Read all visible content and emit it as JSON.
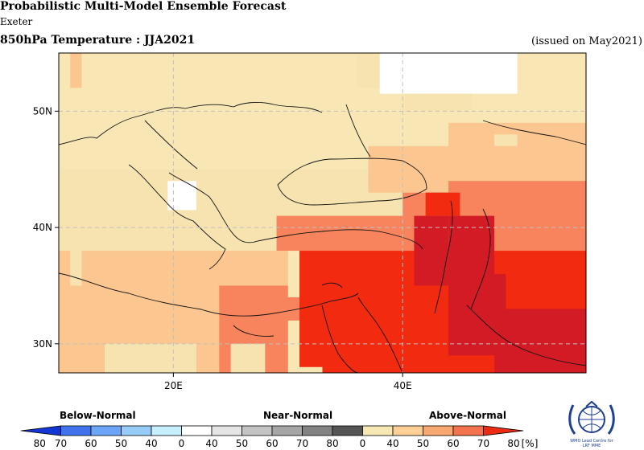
{
  "header": {
    "title": "Probabilistic Multi-Model Ensemble Forecast",
    "subtitle": "Exeter",
    "variable_title": "850hPa Temperature : JJA2021",
    "issued": "(issued on May2021)"
  },
  "map": {
    "lon_range": [
      10,
      56
    ],
    "lat_range": [
      27.5,
      55
    ],
    "grid_lon": [
      20,
      40
    ],
    "grid_lat": [
      30,
      40,
      50
    ],
    "lat_labels": [
      "30N",
      "40N",
      "50N"
    ],
    "lon_labels": [
      "20E",
      "40E"
    ],
    "colors": {
      "land_bg": "#f8e7b5",
      "near_normal": "#ffffff",
      "above_40": "#f6e3b0",
      "above_50": "#fbc68f",
      "above_60": "#f7845c",
      "above_70": "#f12a10",
      "above_80": "#d31b26",
      "coast": "#111111",
      "grid": "#bdbdbd"
    }
  },
  "legend": {
    "categories": [
      "Below-Normal",
      "Near-Normal",
      "Above-Normal"
    ],
    "tick_labels": [
      "80",
      "70",
      "60",
      "50",
      "40",
      "0",
      "40",
      "50",
      "60",
      "70",
      "80",
      "0",
      "40",
      "50",
      "60",
      "70",
      "80"
    ],
    "unit": "[%]",
    "colors": [
      "#1435d6",
      "#3f73ee",
      "#6aa6f5",
      "#97ccf9",
      "#c6eefc",
      "#ffffff",
      "#e5e5e5",
      "#c4c4c4",
      "#a5a5a5",
      "#828282",
      "#555555",
      "#f7e7b3",
      "#fbcf95",
      "#f9a871",
      "#f4724e",
      "#eb2b13"
    ]
  },
  "logo": {
    "text_line1": "WMO Lead Centre for",
    "text_line2": "LRF MME"
  }
}
